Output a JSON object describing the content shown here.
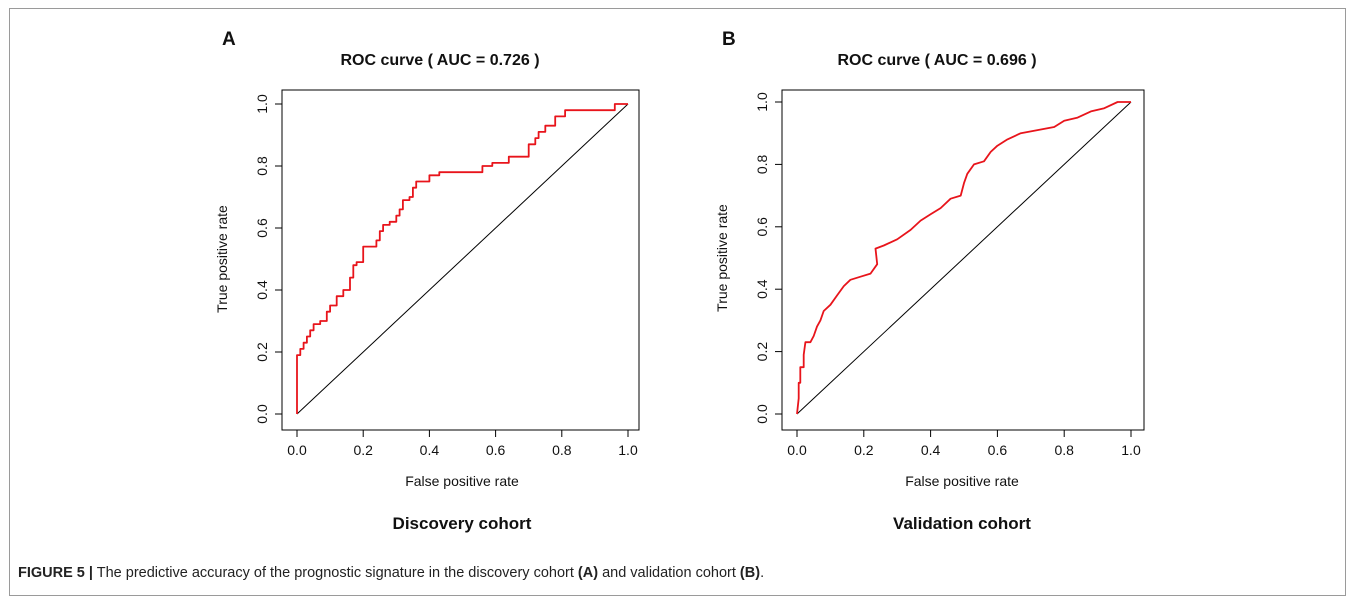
{
  "caption": {
    "figure_label": "FIGURE 5 |",
    "text_1": " The predictive accuracy of the prognostic signature in the discovery cohort ",
    "ref_a": "(A)",
    "text_2": " and validation cohort ",
    "ref_b": "(B)",
    "text_3": "."
  },
  "chart_data": [
    {
      "type": "line",
      "panel_label": "A",
      "title": "ROC curve ( AUC =  0.726 )",
      "subtitle": "Discovery cohort",
      "xlabel": "False positive rate",
      "ylabel": "True positive rate",
      "xlim": [
        0,
        1
      ],
      "ylim": [
        0,
        1
      ],
      "xticks": [
        "0.0",
        "0.2",
        "0.4",
        "0.6",
        "0.8",
        "1.0"
      ],
      "yticks": [
        "0.0",
        "0.2",
        "0.4",
        "0.6",
        "0.8",
        "1.0"
      ],
      "grid": false,
      "colors": {
        "roc": "#e8141b",
        "diagonal": "#000000"
      },
      "series": [
        {
          "values": [
            [
              0,
              0
            ],
            [
              0,
              0.19
            ],
            [
              0.01,
              0.19
            ],
            [
              0.01,
              0.21
            ],
            [
              0.02,
              0.21
            ],
            [
              0.02,
              0.23
            ],
            [
              0.03,
              0.23
            ],
            [
              0.03,
              0.25
            ],
            [
              0.04,
              0.25
            ],
            [
              0.04,
              0.27
            ],
            [
              0.05,
              0.27
            ],
            [
              0.05,
              0.29
            ],
            [
              0.07,
              0.29
            ],
            [
              0.07,
              0.3
            ],
            [
              0.09,
              0.3
            ],
            [
              0.09,
              0.33
            ],
            [
              0.1,
              0.33
            ],
            [
              0.1,
              0.35
            ],
            [
              0.12,
              0.35
            ],
            [
              0.12,
              0.38
            ],
            [
              0.14,
              0.38
            ],
            [
              0.14,
              0.4
            ],
            [
              0.16,
              0.4
            ],
            [
              0.16,
              0.44
            ],
            [
              0.17,
              0.44
            ],
            [
              0.17,
              0.48
            ],
            [
              0.18,
              0.48
            ],
            [
              0.18,
              0.49
            ],
            [
              0.2,
              0.49
            ],
            [
              0.2,
              0.54
            ],
            [
              0.24,
              0.54
            ],
            [
              0.24,
              0.56
            ],
            [
              0.25,
              0.56
            ],
            [
              0.25,
              0.59
            ],
            [
              0.26,
              0.59
            ],
            [
              0.26,
              0.61
            ],
            [
              0.28,
              0.61
            ],
            [
              0.28,
              0.62
            ],
            [
              0.3,
              0.62
            ],
            [
              0.3,
              0.64
            ],
            [
              0.31,
              0.64
            ],
            [
              0.31,
              0.66
            ],
            [
              0.32,
              0.66
            ],
            [
              0.32,
              0.69
            ],
            [
              0.34,
              0.69
            ],
            [
              0.34,
              0.7
            ],
            [
              0.35,
              0.7
            ],
            [
              0.35,
              0.73
            ],
            [
              0.36,
              0.73
            ],
            [
              0.36,
              0.75
            ],
            [
              0.4,
              0.75
            ],
            [
              0.4,
              0.77
            ],
            [
              0.43,
              0.77
            ],
            [
              0.43,
              0.78
            ],
            [
              0.46,
              0.78
            ],
            [
              0.56,
              0.78
            ],
            [
              0.56,
              0.8
            ],
            [
              0.59,
              0.8
            ],
            [
              0.59,
              0.81
            ],
            [
              0.64,
              0.81
            ],
            [
              0.64,
              0.83
            ],
            [
              0.7,
              0.83
            ],
            [
              0.7,
              0.87
            ],
            [
              0.72,
              0.87
            ],
            [
              0.72,
              0.89
            ],
            [
              0.73,
              0.89
            ],
            [
              0.73,
              0.91
            ],
            [
              0.75,
              0.91
            ],
            [
              0.75,
              0.93
            ],
            [
              0.78,
              0.93
            ],
            [
              0.78,
              0.96
            ],
            [
              0.81,
              0.96
            ],
            [
              0.81,
              0.98
            ],
            [
              0.88,
              0.98
            ],
            [
              0.88,
              0.98
            ],
            [
              0.96,
              0.98
            ],
            [
              0.96,
              1.0
            ],
            [
              1.0,
              1.0
            ]
          ]
        }
      ]
    },
    {
      "type": "line",
      "panel_label": "B",
      "title": "ROC curve ( AUC =  0.696 )",
      "subtitle": "Validation cohort",
      "xlabel": "False positive rate",
      "ylabel": "True positive rate",
      "xlim": [
        0,
        1
      ],
      "ylim": [
        0,
        1
      ],
      "xticks": [
        "0.0",
        "0.2",
        "0.4",
        "0.6",
        "0.8",
        "1.0"
      ],
      "yticks": [
        "0.0",
        "0.2",
        "0.4",
        "0.6",
        "0.8",
        "1.0"
      ],
      "grid": false,
      "colors": {
        "roc": "#e8141b",
        "diagonal": "#000000"
      },
      "series": [
        {
          "values": [
            [
              0,
              0
            ],
            [
              0.005,
              0.05
            ],
            [
              0.005,
              0.1
            ],
            [
              0.01,
              0.1
            ],
            [
              0.01,
              0.15
            ],
            [
              0.02,
              0.15
            ],
            [
              0.02,
              0.19
            ],
            [
              0.025,
              0.23
            ],
            [
              0.04,
              0.23
            ],
            [
              0.05,
              0.25
            ],
            [
              0.06,
              0.28
            ],
            [
              0.07,
              0.3
            ],
            [
              0.08,
              0.33
            ],
            [
              0.1,
              0.35
            ],
            [
              0.12,
              0.38
            ],
            [
              0.14,
              0.41
            ],
            [
              0.16,
              0.43
            ],
            [
              0.19,
              0.44
            ],
            [
              0.22,
              0.45
            ],
            [
              0.24,
              0.48
            ],
            [
              0.235,
              0.53
            ],
            [
              0.26,
              0.54
            ],
            [
              0.3,
              0.56
            ],
            [
              0.34,
              0.59
            ],
            [
              0.37,
              0.62
            ],
            [
              0.4,
              0.64
            ],
            [
              0.43,
              0.66
            ],
            [
              0.46,
              0.69
            ],
            [
              0.49,
              0.7
            ],
            [
              0.5,
              0.74
            ],
            [
              0.51,
              0.77
            ],
            [
              0.53,
              0.8
            ],
            [
              0.56,
              0.81
            ],
            [
              0.58,
              0.84
            ],
            [
              0.6,
              0.86
            ],
            [
              0.63,
              0.88
            ],
            [
              0.67,
              0.9
            ],
            [
              0.72,
              0.91
            ],
            [
              0.77,
              0.92
            ],
            [
              0.8,
              0.94
            ],
            [
              0.84,
              0.95
            ],
            [
              0.88,
              0.97
            ],
            [
              0.92,
              0.98
            ],
            [
              0.96,
              1.0
            ],
            [
              1.0,
              1.0
            ]
          ]
        }
      ]
    }
  ]
}
